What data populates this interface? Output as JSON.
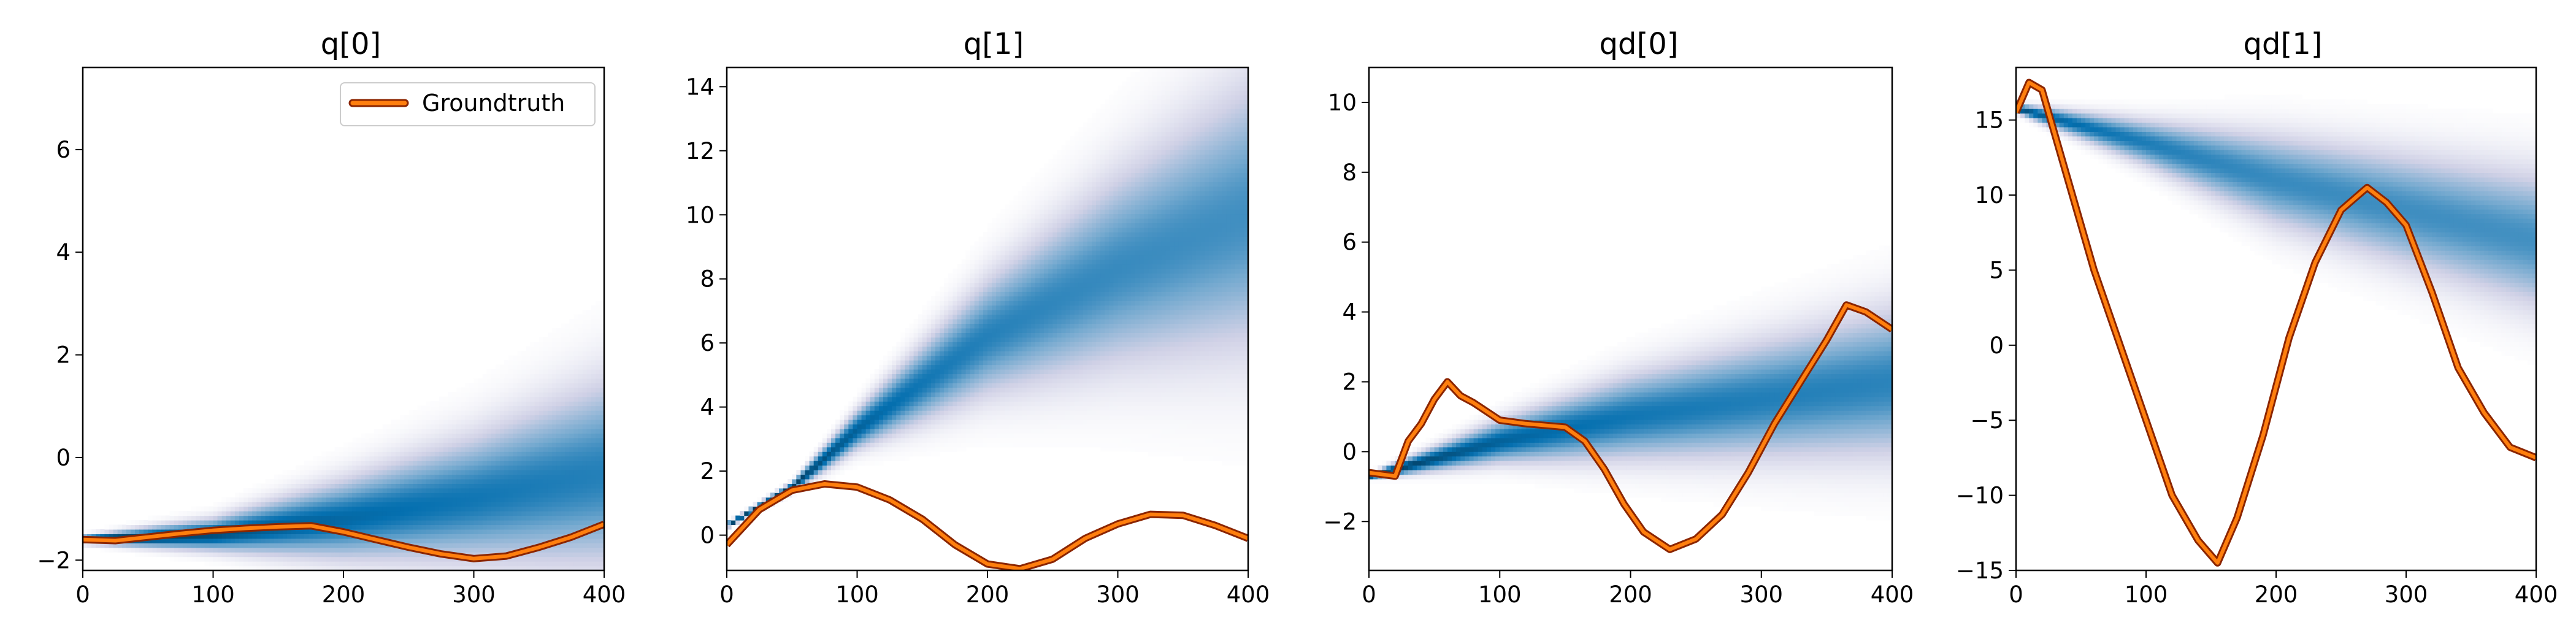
{
  "chart_data": [
    {
      "type": "heatmap",
      "title": "q[0]",
      "xlim": [
        0,
        400
      ],
      "ylim": [
        -2.2,
        7.6
      ],
      "xticks": [
        0,
        100,
        200,
        300,
        400
      ],
      "yticks": [
        -2,
        0,
        2,
        4,
        6
      ],
      "colormap": "white-to-dark-blue (PuBu)",
      "density": {
        "x": [
          0,
          100,
          200,
          300,
          400
        ],
        "mean": [
          -1.6,
          -1.5,
          -1.2,
          -0.8,
          -0.3
        ],
        "std": [
          0.05,
          0.2,
          0.5,
          0.8,
          1.2
        ]
      },
      "legend": {
        "location": "upper-right",
        "entries": [
          "Groundtruth"
        ]
      },
      "series": [
        {
          "name": "Groundtruth",
          "color": "#ff7f0e",
          "x": [
            0,
            25,
            50,
            75,
            100,
            125,
            150,
            175,
            200,
            225,
            250,
            275,
            300,
            325,
            350,
            375,
            400
          ],
          "y": [
            -1.6,
            -1.62,
            -1.55,
            -1.48,
            -1.42,
            -1.38,
            -1.35,
            -1.33,
            -1.45,
            -1.6,
            -1.75,
            -1.88,
            -1.97,
            -1.92,
            -1.75,
            -1.55,
            -1.3
          ]
        }
      ]
    },
    {
      "type": "heatmap",
      "title": "q[1]",
      "xlim": [
        0,
        400
      ],
      "ylim": [
        -1.1,
        14.6
      ],
      "xticks": [
        0,
        100,
        200,
        300,
        400
      ],
      "yticks": [
        0,
        2,
        4,
        6,
        8,
        10,
        12,
        14
      ],
      "colormap": "white-to-dark-blue (PuBu)",
      "density": {
        "x": [
          0,
          50,
          100,
          200,
          300,
          400
        ],
        "mean": [
          0.3,
          1.5,
          3.3,
          6.2,
          8.3,
          10.0
        ],
        "std": [
          0.05,
          0.1,
          0.4,
          1.2,
          2.0,
          2.8
        ]
      },
      "series": [
        {
          "name": "Groundtruth",
          "color": "#ff7f0e",
          "x": [
            0,
            25,
            50,
            75,
            100,
            125,
            150,
            175,
            200,
            225,
            250,
            275,
            300,
            325,
            350,
            375,
            400
          ],
          "y": [
            -0.3,
            0.8,
            1.4,
            1.6,
            1.5,
            1.1,
            0.5,
            -0.3,
            -0.9,
            -1.05,
            -0.75,
            -0.1,
            0.35,
            0.65,
            0.62,
            0.3,
            -0.1
          ]
        }
      ]
    },
    {
      "type": "heatmap",
      "title": "qd[0]",
      "xlim": [
        0,
        400
      ],
      "ylim": [
        -3.4,
        11
      ],
      "xticks": [
        0,
        100,
        200,
        300,
        400
      ],
      "yticks": [
        -2,
        0,
        2,
        4,
        6,
        8,
        10
      ],
      "colormap": "white-to-dark-blue (PuBu)",
      "density": {
        "x": [
          0,
          100,
          200,
          300,
          400
        ],
        "mean": [
          -0.7,
          0.3,
          1.0,
          1.5,
          2.0
        ],
        "std": [
          0.05,
          0.4,
          0.8,
          1.1,
          1.4
        ]
      },
      "series": [
        {
          "name": "Groundtruth",
          "color": "#ff7f0e",
          "x": [
            0,
            20,
            30,
            40,
            50,
            60,
            70,
            80,
            100,
            120,
            150,
            165,
            180,
            195,
            210,
            230,
            250,
            270,
            290,
            310,
            330,
            350,
            365,
            380,
            400
          ],
          "y": [
            -0.6,
            -0.7,
            0.3,
            0.8,
            1.5,
            2.0,
            1.6,
            1.4,
            0.9,
            0.8,
            0.7,
            0.3,
            -0.5,
            -1.5,
            -2.3,
            -2.8,
            -2.5,
            -1.8,
            -0.6,
            0.8,
            2.0,
            3.2,
            4.2,
            4.0,
            3.5
          ]
        }
      ]
    },
    {
      "type": "heatmap",
      "title": "qd[1]",
      "xlim": [
        0,
        400
      ],
      "ylim": [
        -15,
        18.5
      ],
      "xticks": [
        0,
        100,
        200,
        300,
        400
      ],
      "yticks": [
        -15,
        -10,
        -5,
        0,
        5,
        10,
        15
      ],
      "colormap": "white-to-dark-blue (PuBu)",
      "density": {
        "x": [
          0,
          100,
          200,
          300,
          400
        ],
        "mean": [
          15.8,
          13.5,
          11.0,
          9.0,
          7.0
        ],
        "std": [
          0.2,
          1.0,
          2.0,
          2.5,
          3.0
        ]
      },
      "series": [
        {
          "name": "Groundtruth",
          "color": "#ff7f0e",
          "x": [
            0,
            10,
            20,
            40,
            60,
            80,
            100,
            120,
            140,
            155,
            170,
            190,
            210,
            230,
            250,
            270,
            285,
            300,
            320,
            340,
            360,
            380,
            400
          ],
          "y": [
            15.5,
            17.5,
            17.0,
            11.0,
            5.0,
            0.0,
            -5.0,
            -10.0,
            -13.0,
            -14.5,
            -11.5,
            -6.0,
            0.5,
            5.5,
            9.0,
            10.5,
            9.5,
            8.0,
            3.5,
            -1.5,
            -4.5,
            -6.8,
            -7.5
          ]
        }
      ]
    }
  ]
}
